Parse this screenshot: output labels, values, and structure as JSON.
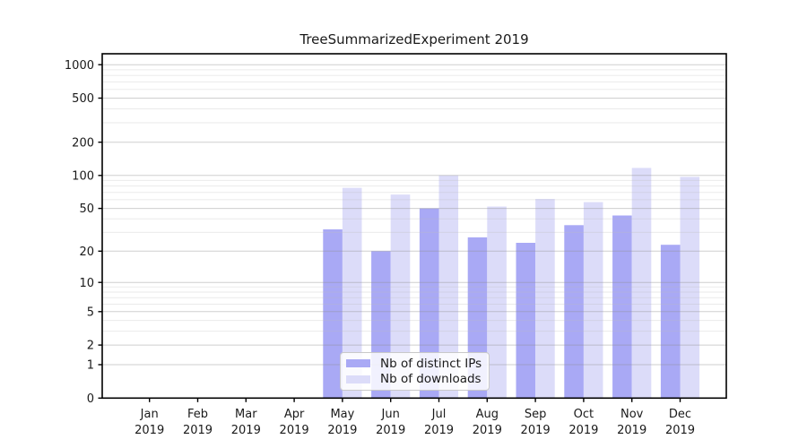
{
  "chart_data": {
    "type": "bar",
    "title": "TreeSummarizedExperiment 2019",
    "categories": [
      "Jan",
      "Feb",
      "Mar",
      "Apr",
      "May",
      "Jun",
      "Jul",
      "Aug",
      "Sep",
      "Oct",
      "Nov",
      "Dec"
    ],
    "year_label": "2019",
    "series": [
      {
        "name": "Nb of distinct IPs",
        "color": "#a9a9f5",
        "values": [
          0,
          0,
          0,
          0,
          32,
          20,
          50,
          27,
          24,
          35,
          43,
          23
        ]
      },
      {
        "name": "Nb of downloads",
        "color": "#dcdcf9",
        "values": [
          0,
          0,
          0,
          0,
          77,
          67,
          100,
          52,
          61,
          57,
          117,
          97
        ]
      }
    ],
    "y_axis": {
      "scale": "log10(1+v)",
      "major_ticks": [
        0,
        1,
        2,
        5,
        10,
        20,
        50,
        100,
        200,
        500,
        1000
      ],
      "minor_gridlines": [
        3,
        4,
        6,
        7,
        8,
        9,
        30,
        40,
        60,
        70,
        80,
        90,
        300,
        400,
        600,
        700,
        800,
        900
      ],
      "top_value": 1150
    },
    "legend": {
      "position": "lower-center"
    },
    "grid": "horizontal-major-and-minor",
    "colors": {
      "major_grid": "rgba(140,140,140,0.42)",
      "minor_grid": "rgba(185,185,185,0.30)",
      "spine": "#000000",
      "text": "#1a1a1a",
      "background": "#ffffff"
    }
  }
}
